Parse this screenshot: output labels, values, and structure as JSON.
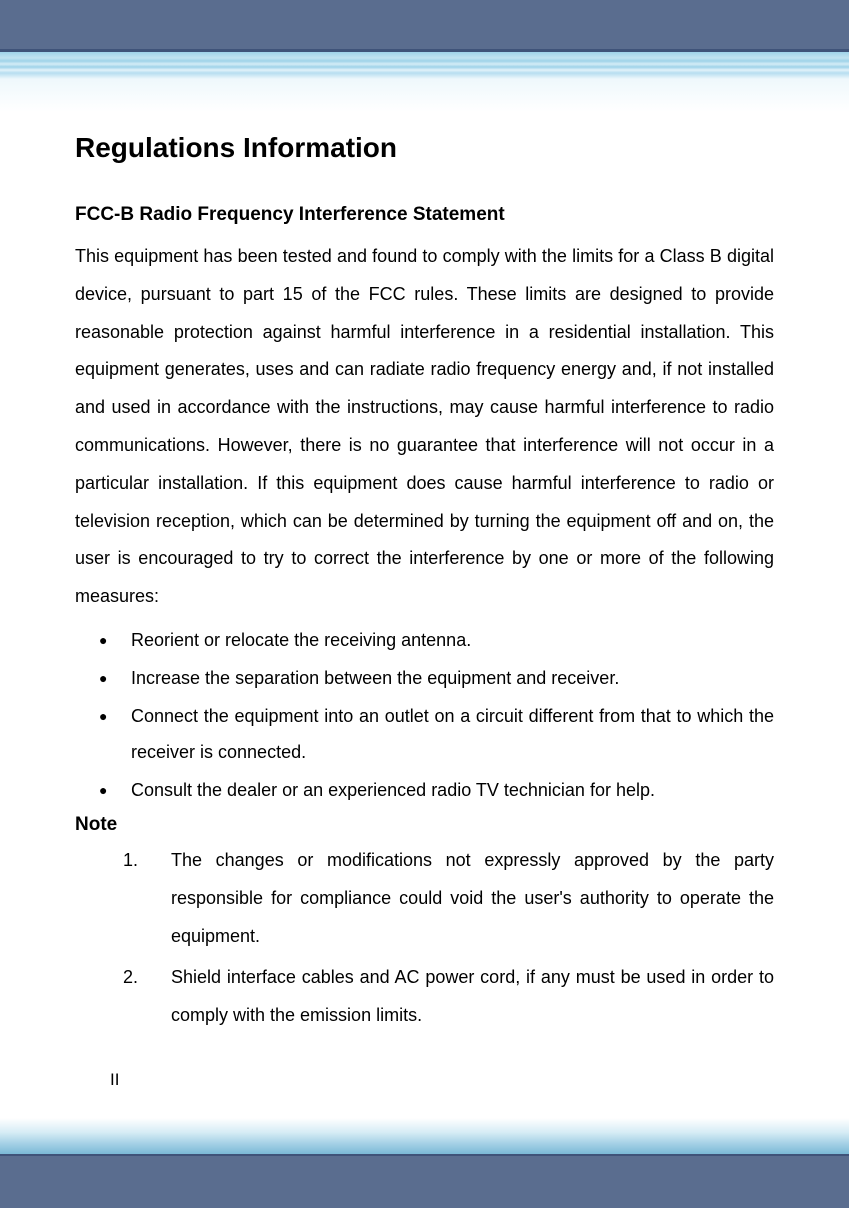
{
  "header": {
    "bar_color": "#5a6d8f",
    "bar_border": "#3f5379",
    "gradient_colors": [
      "#9fd3e9",
      "#c2e3f1",
      "#d4ecf6",
      "#e2f2fa",
      "#eff8fc",
      "#ffffff"
    ]
  },
  "title": "Regulations Information",
  "section": {
    "heading": "FCC-B Radio Frequency Interference Statement",
    "paragraph": "This equipment has been tested and found to comply with the limits for a Class B digital device, pursuant to part 15 of the FCC rules.   These limits are designed to provide reasonable protection against harmful interference in a residential installation.   This equipment generates, uses and can radiate radio frequency energy and, if not installed and used in accordance with the instructions, may cause harmful interference to radio communications.  However, there is no guarantee that interference will not occur in a particular installation.   If this equipment does cause harmful interference to radio or television reception, which can be determined by turning the equipment off and on, the user is encouraged to try to correct the interference by one or more of the following measures:"
  },
  "bullets": [
    "Reorient or relocate the receiving antenna.",
    "Increase the separation between the equipment and receiver.",
    "Connect the equipment into an outlet on a circuit different from that to which the receiver is connected.",
    "Consult the dealer or an experienced radio TV technician for help."
  ],
  "note_label": "Note",
  "notes": [
    "The changes or modifications not expressly approved by the party responsible for compliance could void the user's authority to operate the equipment.",
    "Shield interface cables and AC power cord, if any must be used in order to comply with the emission limits."
  ],
  "page_number": "II",
  "typography": {
    "title_fontsize": 28,
    "heading_fontsize": 19,
    "body_fontsize": 18,
    "line_height": 2.1,
    "text_align": "justify",
    "font_family": "Arial",
    "text_color": "#000000"
  },
  "footer": {
    "gradient_colors": [
      "#ffffff",
      "#d6ecf5",
      "#a6d1e6",
      "#7bb9d6"
    ],
    "bar_color": "#5a6d8f"
  }
}
